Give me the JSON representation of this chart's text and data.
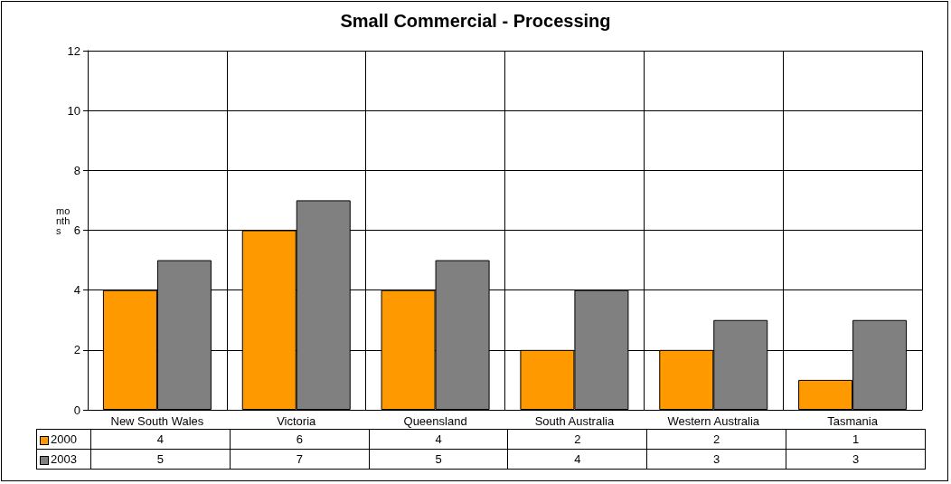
{
  "chart_data": {
    "type": "bar",
    "title": "Small Commercial - Processing",
    "ylabel": "months",
    "categories": [
      "New South Wales",
      "Victoria",
      "Queensland",
      "South Australia",
      "Western Australia",
      "Tasmania"
    ],
    "series": [
      {
        "name": "2000",
        "color": "#ff9900",
        "values": [
          4,
          6,
          4,
          2,
          2,
          1
        ]
      },
      {
        "name": "2003",
        "color": "#808080",
        "values": [
          5,
          7,
          5,
          4,
          3,
          3
        ]
      }
    ],
    "ylim": [
      0,
      12
    ],
    "yticks": [
      0,
      2,
      4,
      6,
      8,
      10,
      12
    ],
    "grid": true,
    "legend": "bottom",
    "data_labels": true
  }
}
